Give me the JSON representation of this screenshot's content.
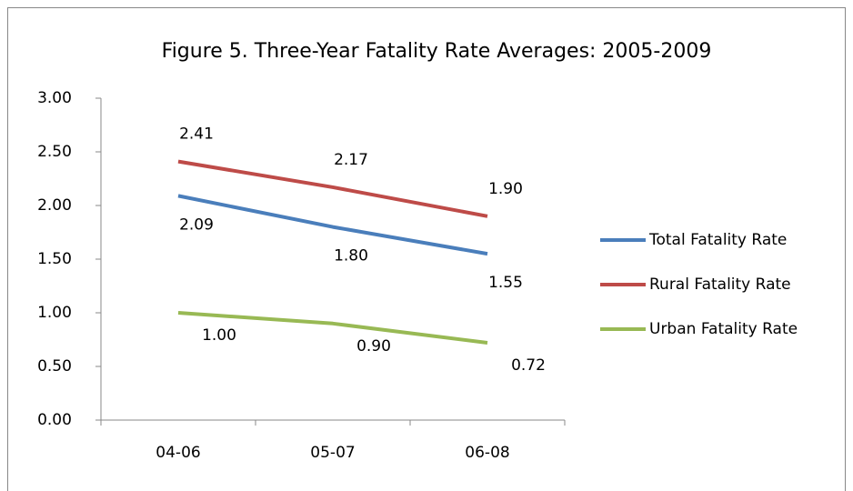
{
  "chart_data": {
    "type": "line",
    "title": "Figure 5.  Three-Year Fatality Rate Averages: 2005-2009",
    "categories": [
      "04-06",
      "05-07",
      "06-08"
    ],
    "series": [
      {
        "name": "Total Fatality Rate",
        "color": "#4a7ebb",
        "values": [
          2.09,
          1.8,
          1.55
        ],
        "value_labels": [
          "2.09",
          "1.80",
          "1.55"
        ]
      },
      {
        "name": "Rural Fatality Rate",
        "color": "#be4b48",
        "values": [
          2.41,
          2.17,
          1.9
        ],
        "value_labels": [
          "2.41",
          "2.17",
          "1.90"
        ]
      },
      {
        "name": "Urban Fatality Rate",
        "color": "#98b954",
        "values": [
          1.0,
          0.9,
          0.72
        ],
        "value_labels": [
          "1.00",
          "0.90",
          "0.72"
        ]
      }
    ],
    "ylim": [
      0,
      3
    ],
    "yticks": [
      {
        "value": 0,
        "label": "0.00"
      },
      {
        "value": 0.5,
        "label": "0.50"
      },
      {
        "value": 1,
        "label": "1.00"
      },
      {
        "value": 1.5,
        "label": "1.50"
      },
      {
        "value": 2,
        "label": "2.00"
      },
      {
        "value": 2.5,
        "label": "2.50"
      },
      {
        "value": 3,
        "label": "3.00"
      }
    ],
    "grid": false,
    "legend": "right"
  }
}
